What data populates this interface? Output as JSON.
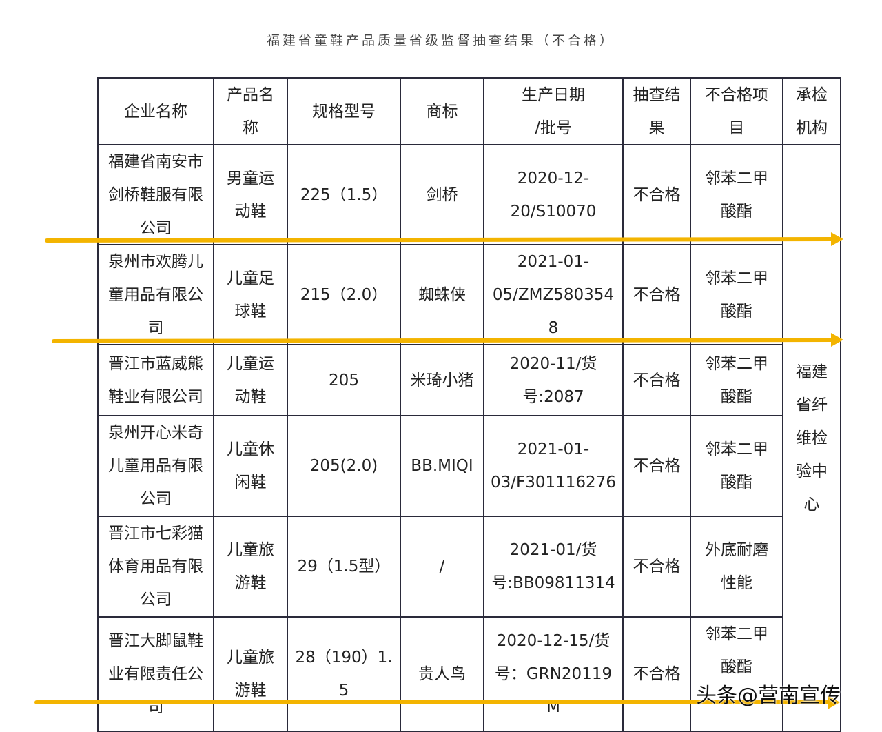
{
  "title": "福建省童鞋产品质量省级监督抽查结果（不合格）",
  "headers": [
    "企业名称",
    "产品名称",
    "规格型号",
    "商标",
    "生产日期\n/批号",
    "抽查结果",
    "不合格项目",
    "承检机构"
  ],
  "rows": [
    [
      "福建省南安市剑桥鞋服有限公司",
      "男童运动鞋",
      "225（1.5）",
      "剑桥",
      "2020-12-\n20/S10070",
      "不合格",
      "邻苯二甲酸酯"
    ],
    [
      "泉州市欢腾儿童用品有限公司",
      "儿童足球鞋",
      "215（2.0）",
      "蜘蛛侠",
      "2021-01-\n05/ZMZ5803548",
      "不合格",
      "邻苯二甲酸酯"
    ],
    [
      "晋江市蓝威熊鞋业有限公司",
      "儿童运动鞋",
      "205",
      "米琦小猪",
      "2020-11/货\n号:2087",
      "不合格",
      "邻苯二甲酸酯"
    ],
    [
      "泉州开心米奇儿童用品有限公司",
      "儿童休闲鞋",
      "205(2.0)",
      "BB.MIQI",
      "2021-01-\n03/F301116276",
      "不合格",
      "邻苯二甲酸酯"
    ],
    [
      "晋江市七彩猫体育用品有限公司",
      "儿童旅游鞋",
      "29（1.5型）",
      "/",
      "2021-01/货\n号:BB09811314",
      "不合格",
      "外底耐磨性能"
    ],
    [
      "晋江大脚鼠鞋业有限责任公司",
      "儿童旅游鞋",
      "28（190）1.5",
      "贵人鸟",
      "2020-12-15/货\n号：GRN20119M",
      "不合格",
      "邻苯二甲酸酯"
    ]
  ],
  "inspector": "福建省纤维检验中心",
  "watermark": "头条@营南宣传",
  "colors": {
    "arrow": "#f3b400",
    "border": "#2a2a3a"
  }
}
